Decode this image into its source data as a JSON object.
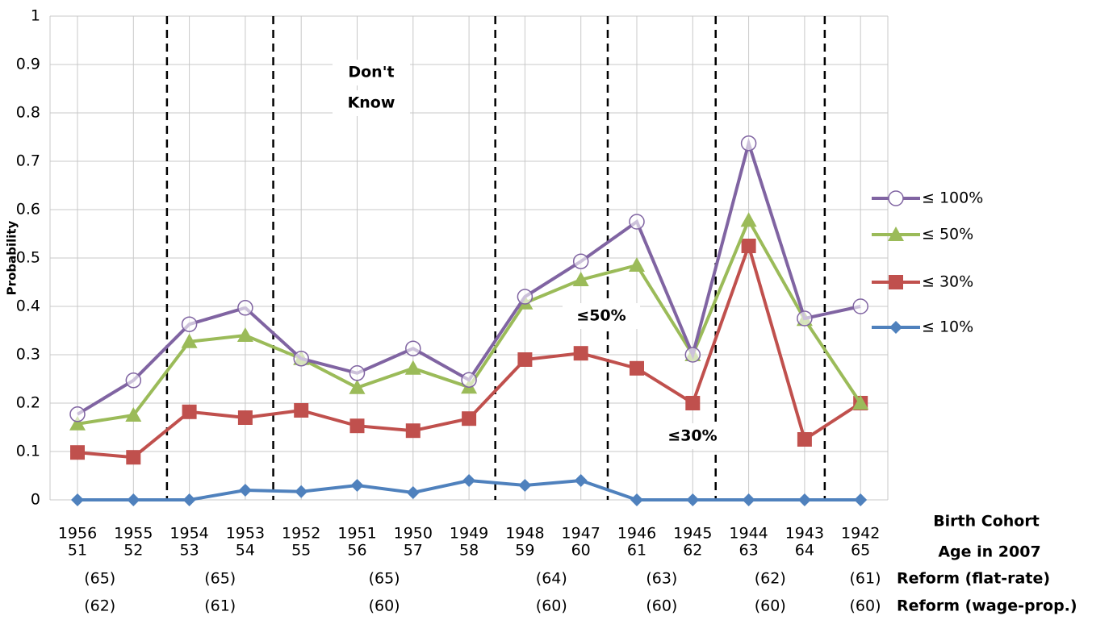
{
  "chart_data": {
    "type": "line",
    "y_label": "Probability",
    "x_label": "Birth Cohort",
    "x_label_2": "Age in 2007",
    "categories": [
      "1956",
      "1955",
      "1954",
      "1953",
      "1952",
      "1951",
      "1950",
      "1949",
      "1948",
      "1947",
      "1946",
      "1945",
      "1944",
      "1943",
      "1942"
    ],
    "ages": [
      "51",
      "52",
      "53",
      "54",
      "55",
      "56",
      "57",
      "58",
      "59",
      "60",
      "61",
      "62",
      "63",
      "64",
      "65"
    ],
    "ylim": [
      0,
      1
    ],
    "yticks": [
      0,
      0.1,
      0.2,
      0.3,
      0.4,
      0.5,
      0.6,
      0.7,
      0.8,
      0.9,
      1
    ],
    "grid": true,
    "series": [
      {
        "name": "≤ 100%",
        "color": "#8064a2",
        "marker": "circle",
        "values": [
          0.177,
          0.247,
          0.363,
          0.397,
          0.292,
          0.262,
          0.313,
          0.248,
          0.42,
          0.493,
          0.575,
          0.3,
          0.737,
          0.375,
          0.4
        ]
      },
      {
        "name": "≤ 50%",
        "color": "#9bbb59",
        "marker": "triangle",
        "values": [
          0.157,
          0.175,
          0.327,
          0.34,
          0.292,
          0.232,
          0.272,
          0.233,
          0.407,
          0.455,
          0.485,
          0.3,
          0.578,
          0.373,
          0.2
        ]
      },
      {
        "name": "≤ 30%",
        "color": "#c0504d",
        "marker": "square",
        "values": [
          0.098,
          0.088,
          0.182,
          0.17,
          0.185,
          0.153,
          0.143,
          0.168,
          0.29,
          0.303,
          0.272,
          0.2,
          0.525,
          0.125,
          0.2
        ]
      },
      {
        "name": "≤ 10%",
        "color": "#4f81bd",
        "marker": "diamond",
        "values": [
          0,
          0,
          0,
          0.02,
          0.017,
          0.03,
          0.015,
          0.04,
          0.03,
          0.04,
          0,
          0,
          0,
          0,
          0
        ]
      }
    ],
    "reforms": [
      {
        "label": "Reform (flat-rate)",
        "values": [
          "(65)",
          "(65)",
          "(65)",
          "(64)",
          "(63)",
          "(62)",
          "(61)"
        ]
      },
      {
        "label": "Reform (wage-prop.)",
        "values": [
          "(62)",
          "(61)",
          "(60)",
          "(60)",
          "(60)",
          "(60)",
          "(60)"
        ]
      }
    ],
    "annotations": [
      "Don't",
      "Know",
      "≤50%",
      "≤30%"
    ]
  }
}
